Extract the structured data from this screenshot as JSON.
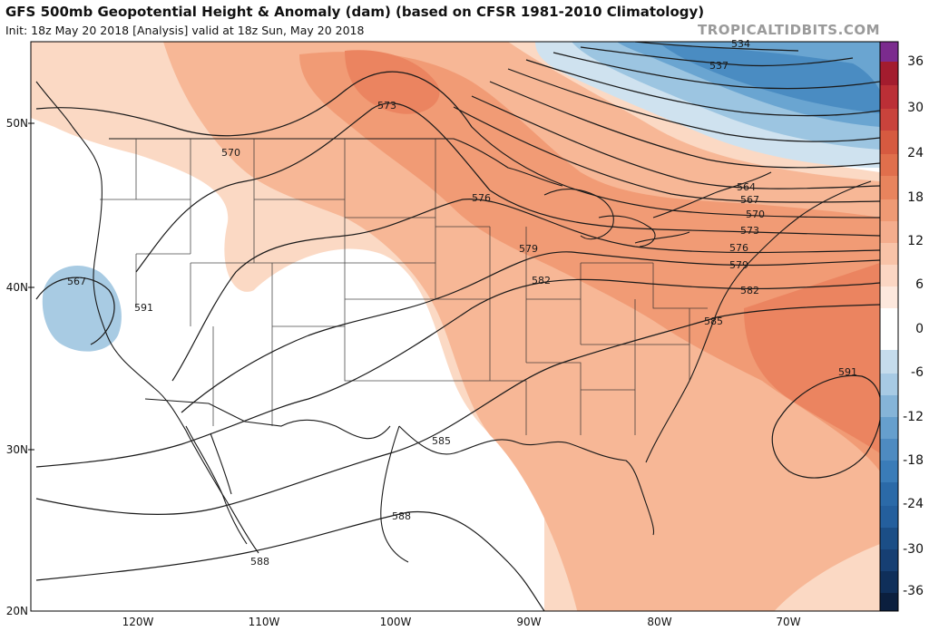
{
  "header": {
    "title": "GFS 500mb Geopotential Height & Anomaly (dam) (based on CFSR 1981-2010 Climatology)",
    "subtitle": "Init: 18z May 20 2018   [Analysis]   valid at 18z Sun, May 20 2018",
    "credit": "TROPICALTIDBITS.COM"
  },
  "axes": {
    "lat_labels": [
      "50N",
      "40N",
      "30N",
      "20N"
    ],
    "lon_labels": [
      "120W",
      "110W",
      "100W",
      "90W",
      "80W",
      "70W"
    ]
  },
  "colorbar": {
    "ticks": [
      "36",
      "30",
      "24",
      "18",
      "12",
      "6",
      "0",
      "-6",
      "-12",
      "-18",
      "-24",
      "-30",
      "-36"
    ],
    "colors": [
      "#7b2b8e",
      "#a31c2e",
      "#c4353a",
      "#d8573f",
      "#e97d56",
      "#f2a07c",
      "#f8c3a8",
      "#fde1d2",
      "#ffffff",
      "#c5dcec",
      "#93c0de",
      "#5e9dcc",
      "#3a7cb8",
      "#245f9d",
      "#163f73",
      "#0c2447",
      "#061226"
    ]
  },
  "contour_labels": [
    "534",
    "537",
    "564",
    "567",
    "570",
    "573",
    "576",
    "579",
    "582",
    "585",
    "588",
    "591",
    "567",
    "570",
    "573",
    "576",
    "579",
    "582",
    "585",
    "588",
    "591"
  ],
  "contour_label_layout": [
    [
      "534",
      0,
      0
    ],
    [
      "537",
      0,
      0
    ],
    [
      "564",
      0,
      0
    ],
    [
      "567",
      0,
      0
    ],
    [
      "570",
      0,
      0
    ],
    [
      "573",
      0,
      0
    ]
  ]
}
